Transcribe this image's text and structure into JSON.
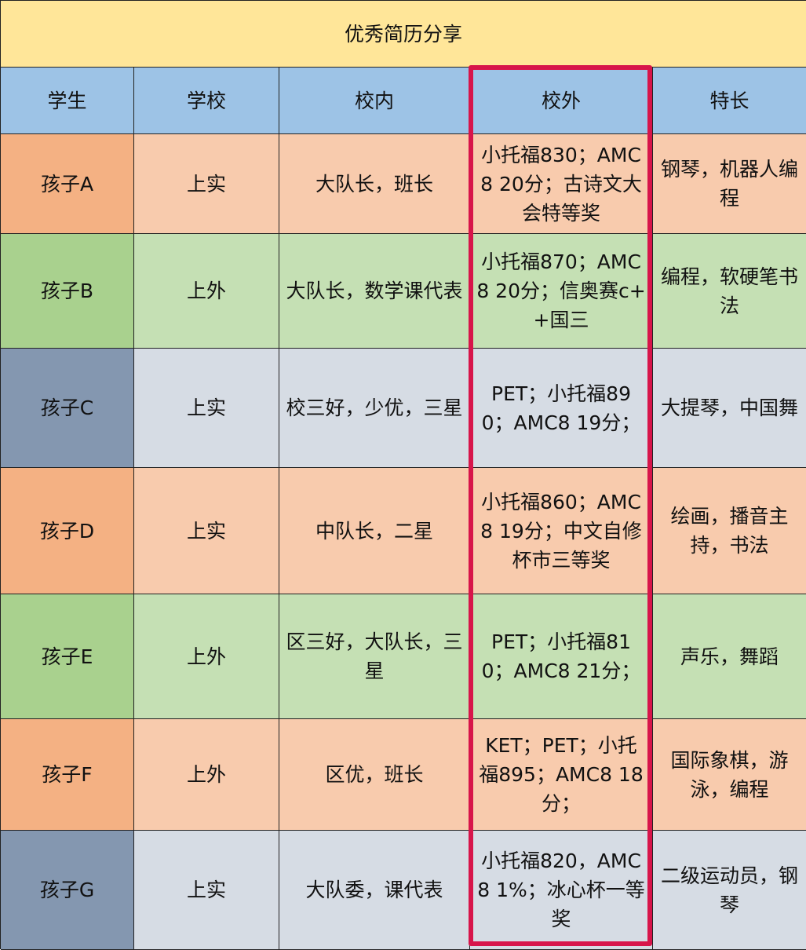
{
  "title": "优秀简历分享",
  "headers": [
    "学生",
    "学校",
    "校内",
    "校外",
    "特长"
  ],
  "rows": [
    {
      "student": "孩子A",
      "school": "上实",
      "internal": "大队长，班长",
      "external": "小托福830；AMC8 20分；古诗文大会特等奖",
      "talent": "钢琴，机器人编程",
      "theme": "orange"
    },
    {
      "student": "孩子B",
      "school": "上外",
      "internal": "大队长，数学课代表",
      "external": "小托福870；AMC8 20分；信奥赛c++国三",
      "talent": "编程，软硬笔书法",
      "theme": "green"
    },
    {
      "student": "孩子C",
      "school": "上实",
      "internal": "校三好，少优，三星",
      "external": "PET；小托福890；AMC8 19分；",
      "talent": "大提琴，中国舞",
      "theme": "blue"
    },
    {
      "student": "孩子D",
      "school": "上实",
      "internal": "中队长，二星",
      "external": "小托福860；AMC8 19分；中文自修杯市三等奖",
      "talent": "绘画，播音主持，书法",
      "theme": "orange"
    },
    {
      "student": "孩子E",
      "school": "上外",
      "internal": "区三好，大队长，三星",
      "external": "PET；小托福810；AMC8 21分；",
      "talent": "声乐，舞蹈",
      "theme": "green"
    },
    {
      "student": "孩子F",
      "school": "上外",
      "internal": "区优，班长",
      "external": "KET；PET；小托福895；AMC8 18分；",
      "talent": "国际象棋，游泳，编程",
      "theme": "orange"
    },
    {
      "student": "孩子G",
      "school": "上实",
      "internal": "大队委，课代表",
      "external": "小托福820，AMC8 1%；冰心杯一等奖",
      "talent": "二级运动员，钢琴",
      "theme": "blue"
    }
  ],
  "colors": {
    "title": "#FFE699",
    "header": "#9DC3E6",
    "highlight_border": "#D7154A"
  }
}
